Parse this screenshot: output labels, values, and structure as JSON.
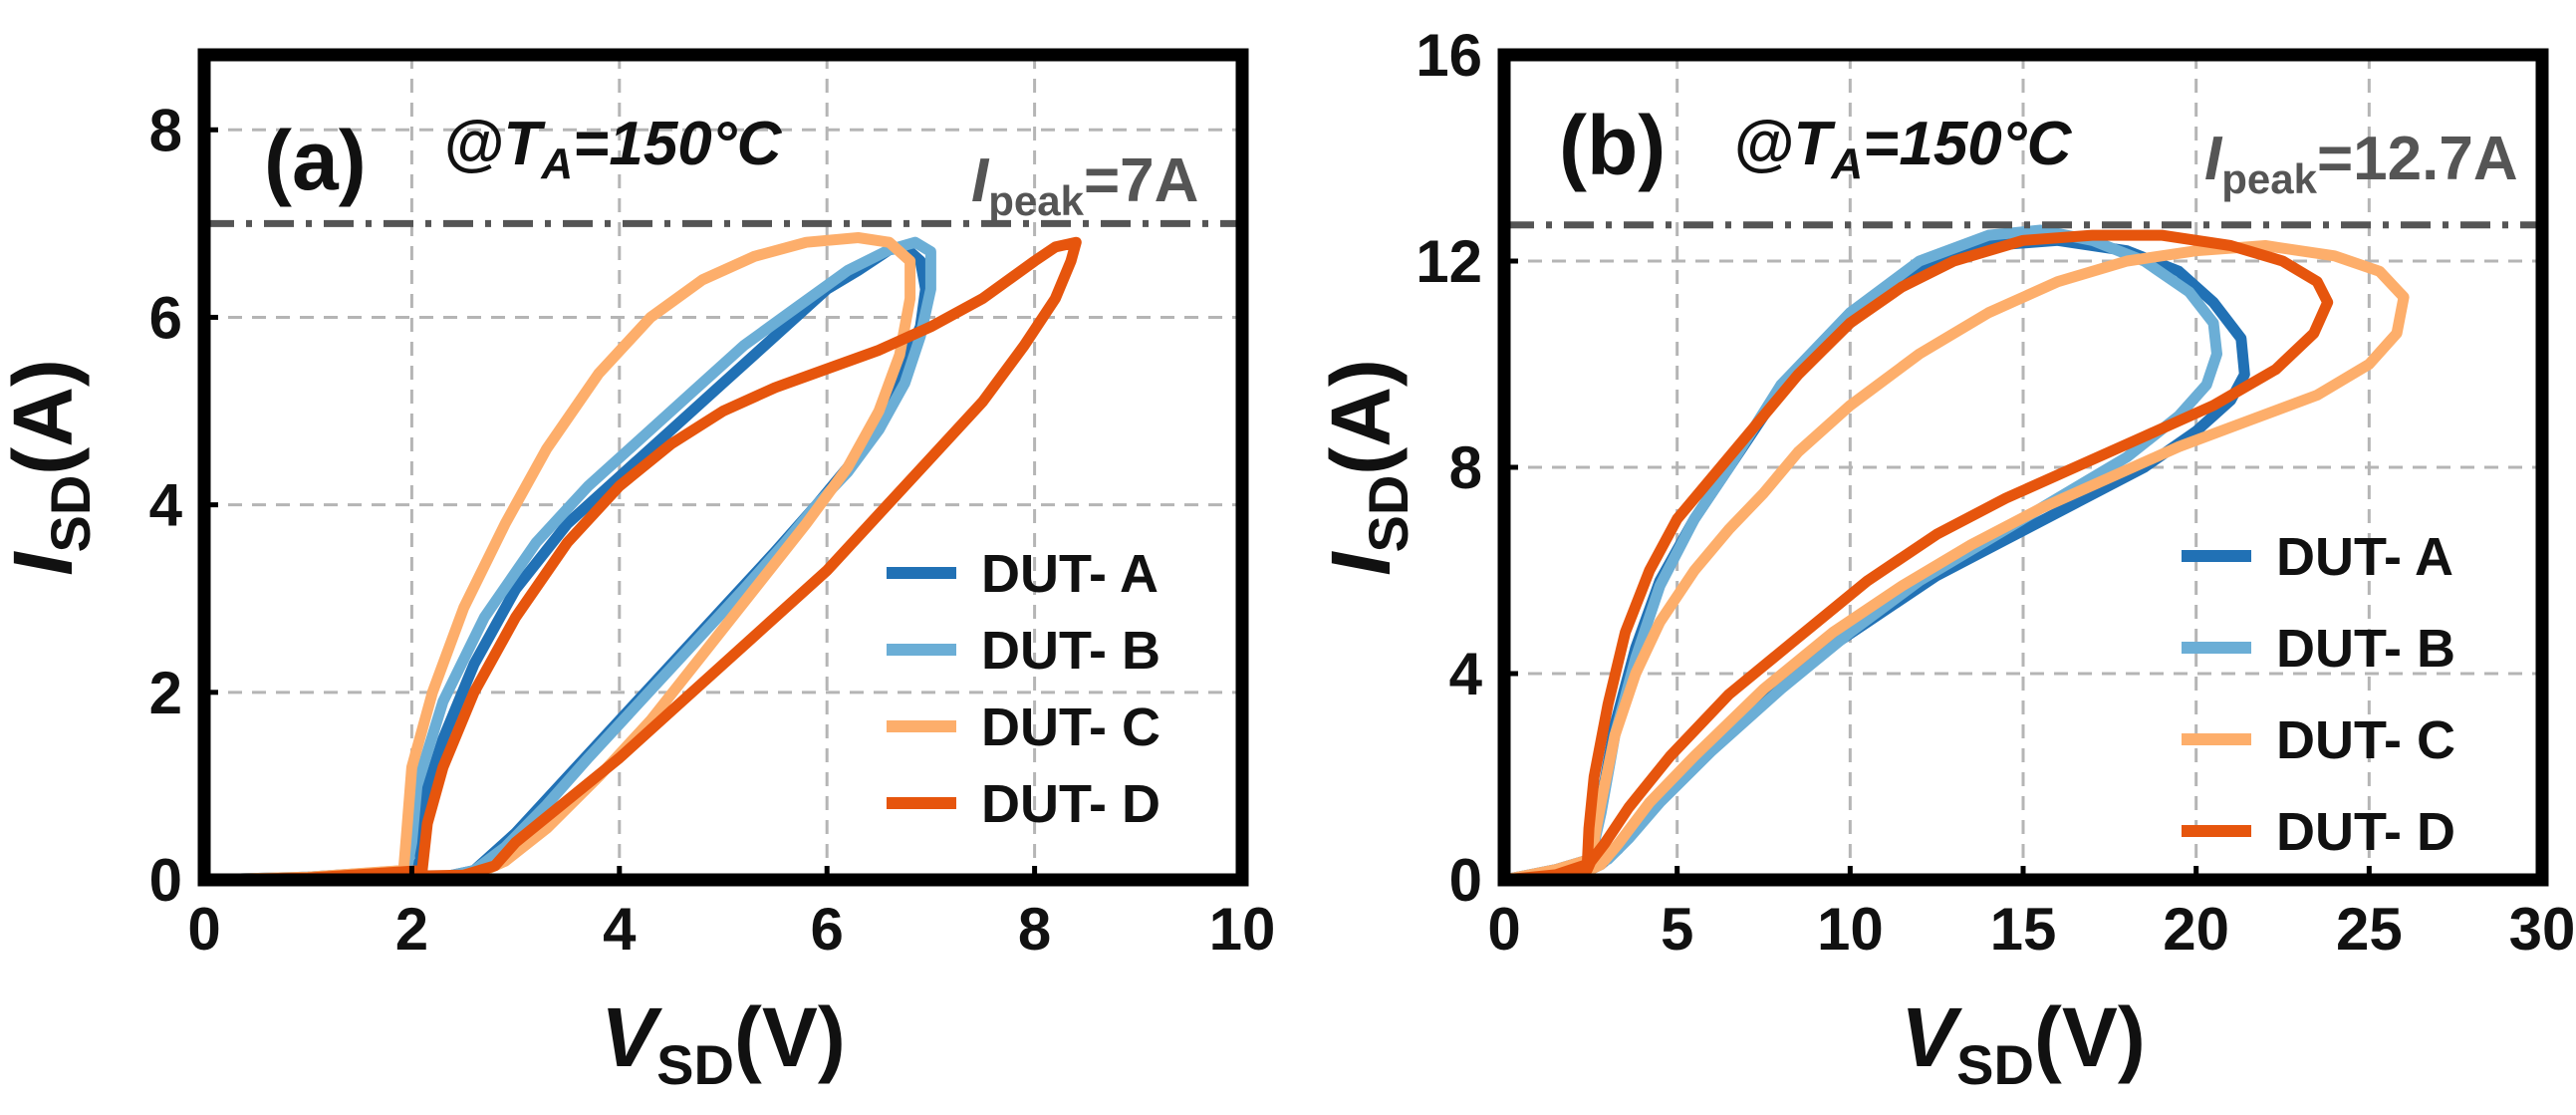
{
  "chart_data": [
    {
      "type": "line",
      "panel_label": "(a)",
      "condition": {
        "prefix": "@",
        "var": "T",
        "sub": "A",
        "value": "=150°C"
      },
      "peak_label": {
        "var": "I",
        "sub": "peak",
        "value": "=7A"
      },
      "peak_value": 7,
      "xlabel": {
        "var": "V",
        "sub": "SD",
        "unit": "(V)"
      },
      "ylabel": {
        "var": "I",
        "sub": "SD",
        "unit": "(A)"
      },
      "xlim": [
        0,
        10
      ],
      "ylim": [
        0,
        8.8
      ],
      "xticks": [
        0,
        2,
        4,
        6,
        8,
        10
      ],
      "yticks": [
        0,
        2,
        4,
        6,
        8
      ],
      "grid": true,
      "legend_position": "right",
      "series": [
        {
          "name": "DUT- A",
          "color": "#2171b5",
          "x": [
            0.0,
            1.0,
            2.0,
            2.08,
            2.1,
            2.3,
            2.6,
            3.0,
            3.5,
            4.0,
            4.5,
            5.0,
            5.5,
            6.0,
            6.3,
            6.6,
            6.75,
            6.9,
            6.95,
            6.9,
            6.7,
            6.5,
            6.2,
            5.9,
            5.5,
            5.0,
            4.5,
            4.0,
            3.5,
            3.0,
            2.6,
            2.3,
            2.1,
            1.0,
            0.0
          ],
          "y": [
            0.0,
            0.03,
            0.1,
            0.2,
            0.8,
            1.5,
            2.3,
            3.1,
            3.8,
            4.3,
            4.8,
            5.3,
            5.8,
            6.3,
            6.5,
            6.72,
            6.75,
            6.6,
            6.3,
            5.9,
            5.4,
            4.9,
            4.4,
            4.0,
            3.5,
            2.9,
            2.3,
            1.7,
            1.1,
            0.5,
            0.1,
            0.03,
            0.02,
            0.01,
            0.0
          ]
        },
        {
          "name": "DUT- B",
          "color": "#6baed6",
          "x": [
            0.0,
            1.0,
            1.95,
            2.0,
            2.05,
            2.3,
            2.7,
            3.2,
            3.7,
            4.2,
            4.7,
            5.2,
            5.7,
            6.2,
            6.6,
            6.85,
            7.0,
            7.0,
            6.9,
            6.75,
            6.5,
            6.2,
            5.9,
            5.6,
            5.2,
            4.7,
            4.2,
            3.7,
            3.3,
            2.9,
            2.6,
            2.3,
            1.0,
            0.0
          ],
          "y": [
            0.0,
            0.03,
            0.1,
            0.4,
            1.0,
            1.9,
            2.8,
            3.6,
            4.2,
            4.7,
            5.2,
            5.7,
            6.1,
            6.5,
            6.72,
            6.8,
            6.7,
            6.3,
            5.8,
            5.3,
            4.8,
            4.35,
            4.0,
            3.6,
            3.1,
            2.5,
            1.9,
            1.3,
            0.8,
            0.35,
            0.1,
            0.03,
            0.01,
            0.0
          ],
          "style": "light"
        },
        {
          "name": "DUT- C",
          "color": "#fdae6b",
          "x": [
            0.0,
            1.0,
            1.92,
            1.95,
            2.0,
            2.2,
            2.5,
            2.9,
            3.3,
            3.8,
            4.3,
            4.8,
            5.3,
            5.8,
            6.3,
            6.6,
            6.8,
            6.8,
            6.7,
            6.5,
            6.2,
            5.8,
            5.3,
            4.8,
            4.3,
            3.8,
            3.3,
            2.9,
            2.6,
            2.4,
            1.0,
            0.0
          ],
          "y": [
            0.0,
            0.03,
            0.1,
            0.5,
            1.2,
            2.0,
            2.9,
            3.8,
            4.6,
            5.4,
            6.0,
            6.4,
            6.65,
            6.8,
            6.85,
            6.8,
            6.6,
            6.2,
            5.6,
            5.0,
            4.4,
            3.8,
            3.1,
            2.4,
            1.7,
            1.1,
            0.55,
            0.2,
            0.05,
            0.02,
            0.01,
            0.0
          ]
        },
        {
          "name": "DUT- D",
          "color": "#e6550d",
          "x": [
            0.0,
            1.0,
            2.1,
            2.15,
            2.3,
            2.6,
            3.0,
            3.5,
            4.0,
            4.5,
            5.0,
            5.5,
            6.0,
            6.5,
            7.0,
            7.5,
            8.0,
            8.2,
            8.4,
            8.35,
            8.2,
            7.9,
            7.5,
            7.0,
            6.5,
            6.0,
            5.5,
            5.0,
            4.5,
            4.0,
            3.5,
            3.0,
            2.8,
            2.5,
            1.0,
            0.0
          ],
          "y": [
            0.0,
            0.02,
            0.1,
            0.6,
            1.2,
            2.0,
            2.8,
            3.6,
            4.2,
            4.65,
            5.0,
            5.25,
            5.45,
            5.65,
            5.9,
            6.2,
            6.6,
            6.75,
            6.8,
            6.6,
            6.2,
            5.7,
            5.1,
            4.5,
            3.9,
            3.3,
            2.8,
            2.3,
            1.8,
            1.3,
            0.85,
            0.4,
            0.15,
            0.05,
            0.02,
            0.0
          ]
        }
      ]
    },
    {
      "type": "line",
      "panel_label": "(b)",
      "condition": {
        "prefix": "@",
        "var": "T",
        "sub": "A",
        "value": "=150°C"
      },
      "peak_label": {
        "var": "I",
        "sub": "peak",
        "value": "=12.7A"
      },
      "peak_value": 12.7,
      "xlabel": {
        "var": "V",
        "sub": "SD",
        "unit": "(V)"
      },
      "ylabel": {
        "var": "I",
        "sub": "SD",
        "unit": "(A)"
      },
      "xlim": [
        0,
        30
      ],
      "ylim": [
        0,
        16
      ],
      "xticks": [
        0,
        5,
        10,
        15,
        20,
        25,
        30
      ],
      "yticks": [
        0,
        4,
        8,
        12,
        16
      ],
      "grid": true,
      "legend_position": "right",
      "series": [
        {
          "name": "DUT- A",
          "color": "#2171b5",
          "x": [
            0.0,
            1.5,
            2.5,
            2.8,
            3.2,
            3.8,
            4.5,
            5.5,
            6.5,
            8.0,
            10.0,
            12.0,
            14.0,
            16.0,
            18.0,
            19.5,
            20.5,
            21.3,
            21.4,
            21.0,
            20.0,
            18.5,
            16.5,
            14.5,
            12.5,
            10.5,
            8.5,
            6.5,
            5.0,
            4.0,
            3.3,
            2.8,
            2.5,
            1.5,
            0.0
          ],
          "y": [
            0.0,
            0.2,
            0.4,
            1.5,
            3.0,
            4.5,
            5.8,
            7.0,
            8.0,
            9.5,
            10.8,
            11.8,
            12.3,
            12.4,
            12.2,
            11.8,
            11.2,
            10.5,
            9.8,
            9.3,
            8.7,
            8.0,
            7.3,
            6.6,
            5.9,
            5.0,
            4.1,
            3.0,
            2.0,
            1.2,
            0.6,
            0.3,
            0.2,
            0.1,
            0.0
          ]
        },
        {
          "name": "DUT- B",
          "color": "#6baed6",
          "x": [
            0.0,
            1.5,
            2.5,
            2.8,
            3.2,
            3.8,
            4.5,
            5.5,
            6.5,
            8.0,
            10.0,
            12.0,
            14.0,
            15.5,
            17.0,
            18.5,
            19.8,
            20.5,
            20.6,
            20.3,
            19.5,
            18.0,
            16.0,
            14.0,
            12.0,
            10.0,
            8.0,
            6.0,
            4.5,
            3.6,
            3.0,
            2.6,
            1.5,
            0.0
          ],
          "y": [
            0.0,
            0.2,
            0.4,
            1.3,
            2.8,
            4.3,
            5.7,
            7.0,
            8.0,
            9.6,
            11.0,
            12.0,
            12.5,
            12.6,
            12.4,
            12.0,
            11.4,
            10.8,
            10.2,
            9.6,
            9.0,
            8.2,
            7.4,
            6.6,
            5.8,
            4.8,
            3.7,
            2.5,
            1.5,
            0.8,
            0.4,
            0.3,
            0.1,
            0.0
          ]
        },
        {
          "name": "DUT- C",
          "color": "#fdae6b",
          "x": [
            0.0,
            1.5,
            2.5,
            2.8,
            3.2,
            3.8,
            4.5,
            5.5,
            6.5,
            7.5,
            8.5,
            10.0,
            12.0,
            14.0,
            16.0,
            18.0,
            20.0,
            22.0,
            24.0,
            25.3,
            26.0,
            25.8,
            25.0,
            23.5,
            21.5,
            19.5,
            17.5,
            15.5,
            13.5,
            11.5,
            9.5,
            7.5,
            5.5,
            4.2,
            3.3,
            2.8,
            2.5,
            1.5,
            0.0
          ],
          "y": [
            0.0,
            0.2,
            0.4,
            1.5,
            2.8,
            4.0,
            5.0,
            6.0,
            6.8,
            7.5,
            8.3,
            9.2,
            10.2,
            11.0,
            11.6,
            12.0,
            12.2,
            12.3,
            12.1,
            11.8,
            11.3,
            10.6,
            10.0,
            9.4,
            8.9,
            8.4,
            7.8,
            7.2,
            6.5,
            5.7,
            4.8,
            3.7,
            2.4,
            1.5,
            0.7,
            0.3,
            0.2,
            0.1,
            0.0
          ]
        },
        {
          "name": "DUT- D",
          "color": "#e6550d",
          "x": [
            0.0,
            1.5,
            2.4,
            2.45,
            2.6,
            3.0,
            3.5,
            4.2,
            5.0,
            6.0,
            7.0,
            8.5,
            10.0,
            11.5,
            13.0,
            15.0,
            17.0,
            19.0,
            21.0,
            22.5,
            23.5,
            23.8,
            23.4,
            22.3,
            20.5,
            18.5,
            16.5,
            14.5,
            12.5,
            10.5,
            8.5,
            6.5,
            4.8,
            3.6,
            2.9,
            2.5,
            2.4,
            1.5,
            0.0
          ],
          "y": [
            0.0,
            0.1,
            0.3,
            1.0,
            2.0,
            3.4,
            4.8,
            6.0,
            7.0,
            7.8,
            8.6,
            9.8,
            10.8,
            11.5,
            12.0,
            12.4,
            12.5,
            12.5,
            12.3,
            12.0,
            11.6,
            11.2,
            10.6,
            9.9,
            9.2,
            8.6,
            8.0,
            7.4,
            6.7,
            5.8,
            4.7,
            3.6,
            2.4,
            1.4,
            0.7,
            0.35,
            0.2,
            0.1,
            0.0
          ]
        }
      ]
    }
  ]
}
